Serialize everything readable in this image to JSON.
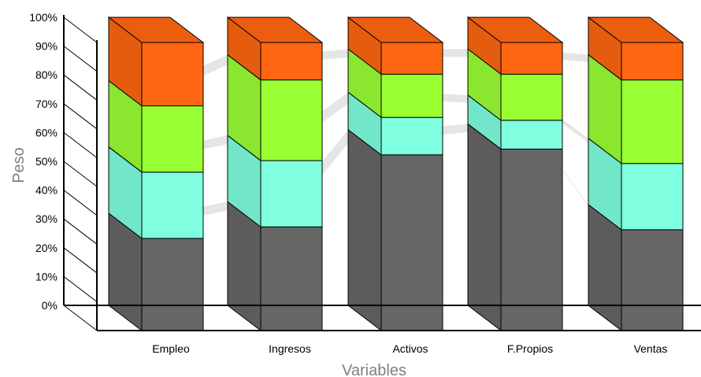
{
  "chart_data": {
    "type": "bar",
    "stacked": true,
    "percent_stacked": true,
    "three_d": true,
    "title": "",
    "xlabel": "Variables",
    "ylabel": "Peso",
    "ylim": [
      0,
      100
    ],
    "y_ticks": [
      "0%",
      "10%",
      "20%",
      "30%",
      "40%",
      "50%",
      "60%",
      "70%",
      "80%",
      "90%",
      "100%"
    ],
    "categories": [
      "Empleo",
      "Ingresos",
      "Activos",
      "F.Propios",
      "Ventas"
    ],
    "series": [
      {
        "values": [
          32,
          36,
          61,
          63,
          35
        ],
        "color": "#666666"
      },
      {
        "values": [
          23,
          23,
          13,
          10,
          23
        ],
        "color": "#7fffdf"
      },
      {
        "values": [
          23,
          28,
          15,
          16,
          29
        ],
        "color": "#99ff33"
      },
      {
        "values": [
          22,
          13,
          11,
          11,
          13
        ],
        "color": "#ff6611"
      }
    ],
    "grid": false,
    "legend": "none"
  }
}
